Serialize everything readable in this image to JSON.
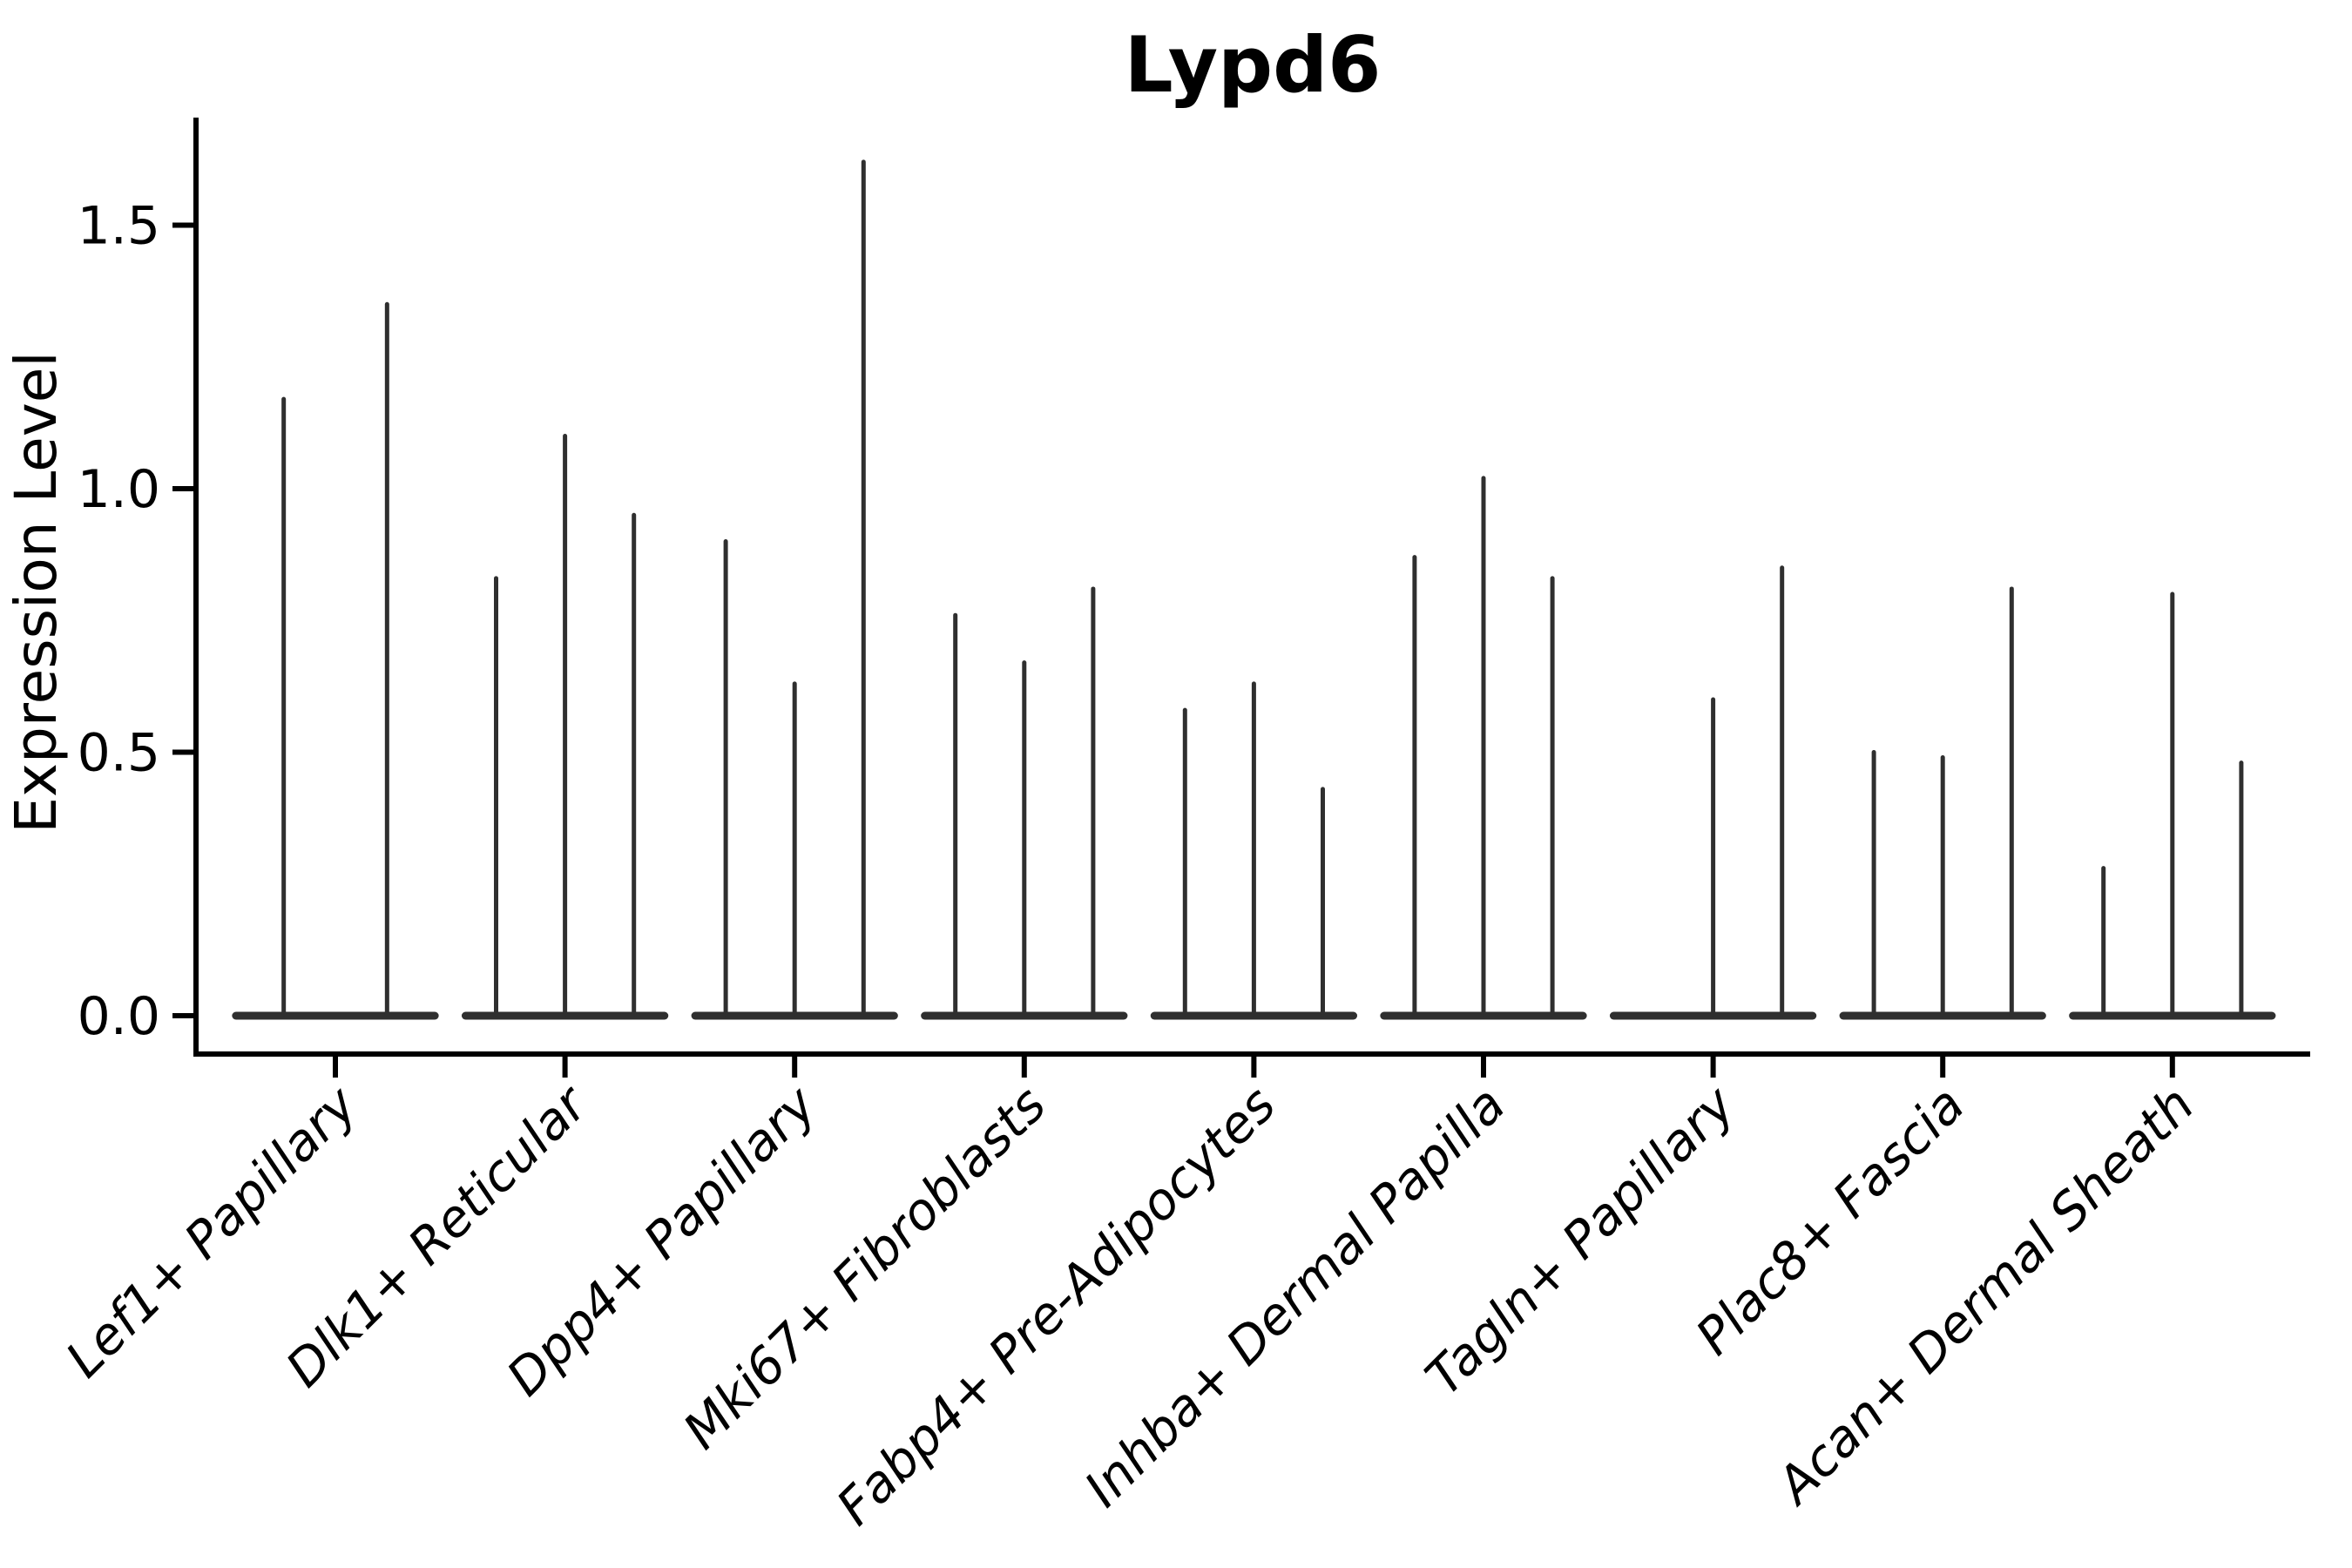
{
  "figure": {
    "title": "Lypd6",
    "background_color": "#ffffff"
  },
  "colors": {
    "violin": "#2f2f2f",
    "axis": "#000000",
    "text": "#000000",
    "background": "#ffffff"
  },
  "chart_data": {
    "type": "violin",
    "title": "Lypd6",
    "xlabel": "",
    "ylabel": "Expression Level",
    "yticks": [
      0,
      0.5,
      1.0,
      1.5
    ],
    "ytick_labels": [
      "0.0",
      "0.5",
      "1.0",
      "1.5"
    ],
    "ylim": [
      0,
      1.72
    ],
    "grid": false,
    "legend": false,
    "x_tick_rotation": 45,
    "categories": [
      "Lef1+ Papillary",
      "Dlk1+ Reticular",
      "Dpp4+ Papillary",
      "Mki67+ Fibroblasts",
      "Fabp4+ Pre-Adipocytes",
      "Inhba+ Dermal Papilla",
      "Tagln+ Papillary",
      "Plac8+ Fascia",
      "Acan+ Dermal Sheath"
    ],
    "violin_description": "Each category shows narrow spike-like violins sitting on a flat base at expression 0; value = peak (max) expression level of each violin. A value of 0 means a flat violin with no spike.",
    "violin_maxima": [
      [
        1.17,
        1.35
      ],
      [
        0.83,
        1.1,
        0.95
      ],
      [
        0.9,
        0.63,
        1.62
      ],
      [
        0.76,
        0.67,
        0.81
      ],
      [
        0.58,
        0.63,
        0.43
      ],
      [
        0.87,
        1.02,
        0.83
      ],
      [
        0.0,
        0.6,
        0.85
      ],
      [
        0.5,
        0.49,
        0.81
      ],
      [
        0.28,
        0.8,
        0.48
      ]
    ]
  }
}
